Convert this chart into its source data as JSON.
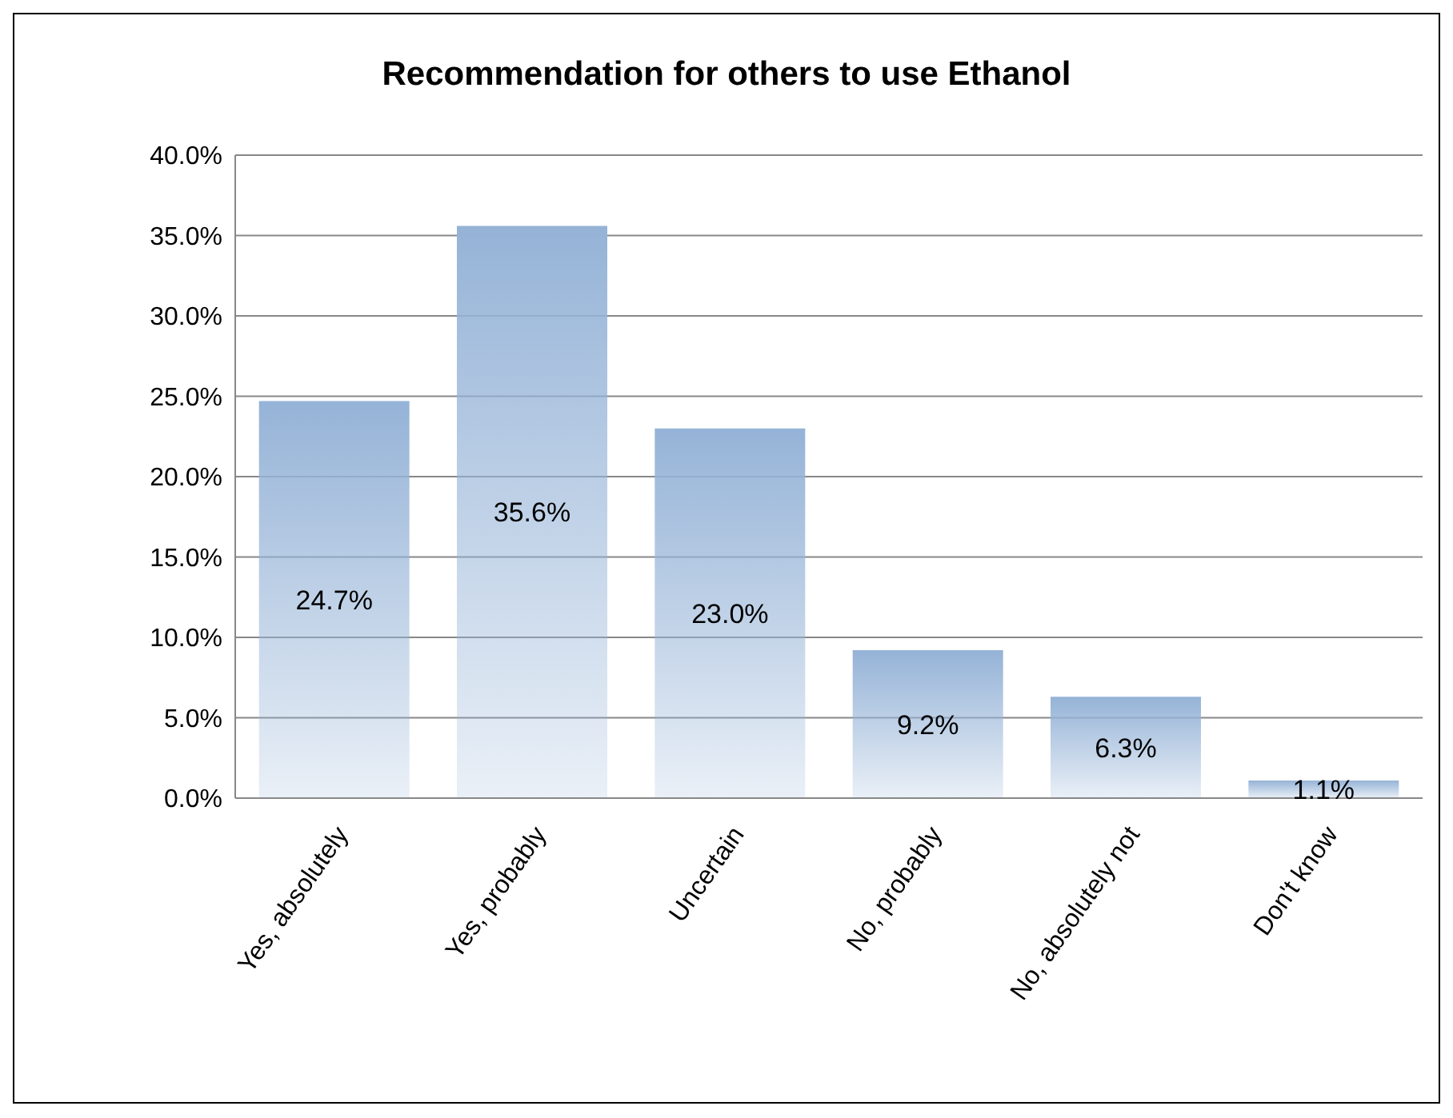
{
  "chart_data": {
    "type": "bar",
    "title": "Recommendation for others to use Ethanol",
    "categories": [
      "Yes, absolutely",
      "Yes, probably",
      "Uncertain",
      "No, probably",
      "No, absolutely not",
      "Don't know"
    ],
    "values": [
      24.7,
      35.6,
      23.0,
      9.2,
      6.3,
      1.1
    ],
    "value_labels": [
      "24.7%",
      "35.6%",
      "23.0%",
      "9.2%",
      "6.3%",
      "1.1%"
    ],
    "color": "#95b3d7",
    "ylim": [
      0,
      40
    ],
    "yticks": [
      {
        "value": 0,
        "label": "0.0%"
      },
      {
        "value": 5,
        "label": "5.0%"
      },
      {
        "value": 10,
        "label": "10.0%"
      },
      {
        "value": 15,
        "label": "15.0%"
      },
      {
        "value": 20,
        "label": "20.0%"
      },
      {
        "value": 25,
        "label": "25.0%"
      },
      {
        "value": 30,
        "label": "30.0%"
      },
      {
        "value": 35,
        "label": "35.0%"
      },
      {
        "value": 40,
        "label": "40.0%"
      }
    ],
    "grid": "y"
  }
}
